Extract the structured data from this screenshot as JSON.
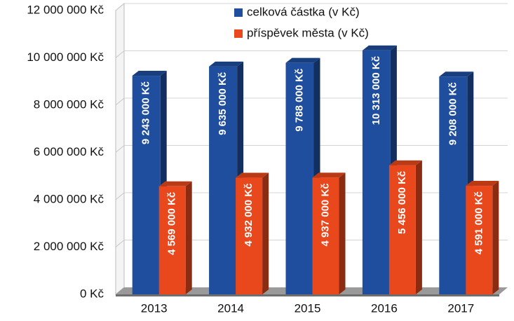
{
  "chart_data": {
    "type": "bar3d",
    "categories": [
      "2013",
      "2014",
      "2015",
      "2016",
      "2017"
    ],
    "series": [
      {
        "name": "celková částka (v Kč)",
        "color": "#1f4e9e",
        "values": [
          9243000,
          9635000,
          9788000,
          10313000,
          9208000
        ],
        "value_labels": [
          "9 243 000 Kč",
          "9 635 000 Kč",
          "9 788 000 Kč",
          "10 313 000 Kč",
          "9 208 000 Kč"
        ]
      },
      {
        "name": "příspěvek města (v Kč)",
        "color": "#e8481c",
        "values": [
          4569000,
          4932000,
          4937000,
          5456000,
          4591000
        ],
        "value_labels": [
          "4 569 000 Kč",
          "4 932 000 Kč",
          "4 937 000 Kč",
          "5 456 000 Kč",
          "4 591 000 Kč"
        ]
      }
    ],
    "ylim": [
      0,
      12000000
    ],
    "yticks": [
      {
        "value": 0,
        "label": "0 Kč"
      },
      {
        "value": 2000000,
        "label": "2 000 000 Kč"
      },
      {
        "value": 4000000,
        "label": "4 000 000 Kč"
      },
      {
        "value": 6000000,
        "label": "6 000 000 Kč"
      },
      {
        "value": 8000000,
        "label": "8 000 000 Kč"
      },
      {
        "value": 10000000,
        "label": "10 000 000 Kč"
      },
      {
        "value": 12000000,
        "label": "12 000 000 Kč"
      }
    ],
    "grid": true,
    "legend": "top"
  }
}
